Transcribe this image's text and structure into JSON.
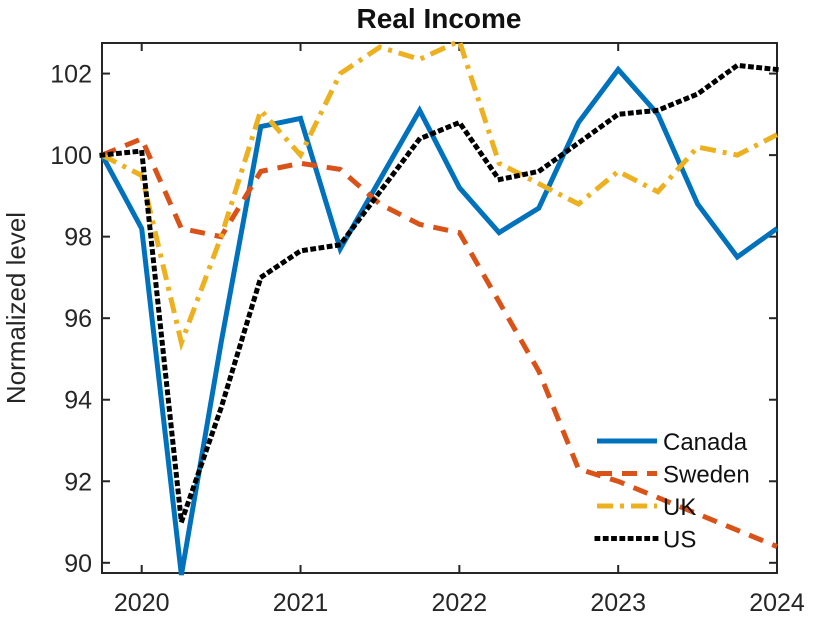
{
  "figure": {
    "title": "Real Income",
    "ylabel": "Normalized level",
    "background": "#ffffff",
    "axis_color": "#262626"
  },
  "chart_data": {
    "type": "line",
    "title": "Real Income",
    "xlabel": "",
    "ylabel": "Normalized level",
    "grid": false,
    "legend_position": "lower right, no box",
    "xlim": [
      2019.75,
      2024.0
    ],
    "ylim": [
      89.75,
      102.75
    ],
    "xticks": [
      2020,
      2021,
      2022,
      2023,
      2024
    ],
    "xtick_labels": [
      "2020",
      "2021",
      "2022",
      "2023",
      "2024"
    ],
    "yticks": [
      90,
      92,
      94,
      96,
      98,
      100,
      102
    ],
    "ytick_labels": [
      "90",
      "92",
      "94",
      "96",
      "98",
      "100",
      "102"
    ],
    "x": [
      2019.75,
      2020.0,
      2020.25,
      2020.5,
      2020.75,
      2021.0,
      2021.25,
      2021.5,
      2021.75,
      2022.0,
      2022.25,
      2022.5,
      2022.75,
      2023.0,
      2023.25,
      2023.5,
      2023.75,
      2024.0
    ],
    "series": [
      {
        "name": "Canada",
        "color": "#0072BD",
        "line_style": "solid",
        "values": [
          100,
          98.2,
          89.7,
          95.4,
          100.7,
          100.9,
          97.7,
          99.4,
          101.1,
          99.2,
          98.1,
          98.7,
          100.8,
          102.1,
          101.0,
          98.8,
          97.5,
          98.2
        ]
      },
      {
        "name": "Sweden",
        "color": "#D95319",
        "line_style": "dashed",
        "values": [
          100,
          100.4,
          98.2,
          98.0,
          99.6,
          99.8,
          99.65,
          98.8,
          98.3,
          98.1,
          96.4,
          94.7,
          92.3,
          92.0,
          91.6,
          91.2,
          90.8,
          90.4
        ]
      },
      {
        "name": "UK",
        "color": "#EDB120",
        "line_style": "dashdot",
        "values": [
          100,
          99.5,
          95.4,
          98.0,
          101.1,
          100.0,
          102.0,
          102.65,
          102.35,
          102.8,
          99.8,
          99.3,
          98.8,
          99.6,
          99.1,
          100.2,
          100.0,
          100.5
        ]
      },
      {
        "name": "US",
        "color": "#000000",
        "line_style": "dotted",
        "values": [
          100,
          100.1,
          91.0,
          93.8,
          97.0,
          97.65,
          97.8,
          99.1,
          100.4,
          100.8,
          99.4,
          99.6,
          100.3,
          101.0,
          101.1,
          101.5,
          102.2,
          102.1
        ]
      }
    ],
    "legend": {
      "labels": [
        "Canada",
        "Sweden",
        "UK",
        "US"
      ],
      "boxed": false
    }
  }
}
